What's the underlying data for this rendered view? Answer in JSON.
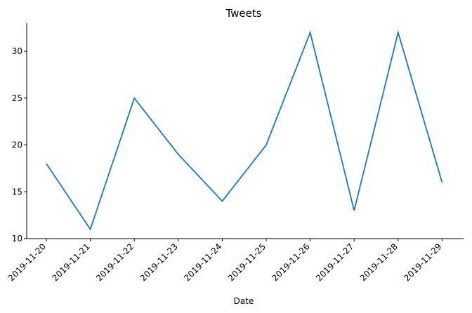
{
  "chart_data": {
    "type": "line",
    "title": "Tweets",
    "xlabel": "Date",
    "ylabel": "",
    "categories": [
      "2019-11-20",
      "2019-11-21",
      "2019-11-22",
      "2019-11-23",
      "2019-11-24",
      "2019-11-25",
      "2019-11-26",
      "2019-11-27",
      "2019-11-28",
      "2019-11-29"
    ],
    "series": [
      {
        "values": [
          18,
          11,
          25,
          19,
          14,
          20,
          32,
          13,
          32,
          16
        ]
      }
    ],
    "ylim": [
      10,
      33
    ],
    "yticks": [
      10,
      15,
      20,
      25,
      30
    ],
    "grid": false,
    "legend": "none",
    "colors": {
      "line": "#1f77b4",
      "axis": "#000000"
    }
  }
}
